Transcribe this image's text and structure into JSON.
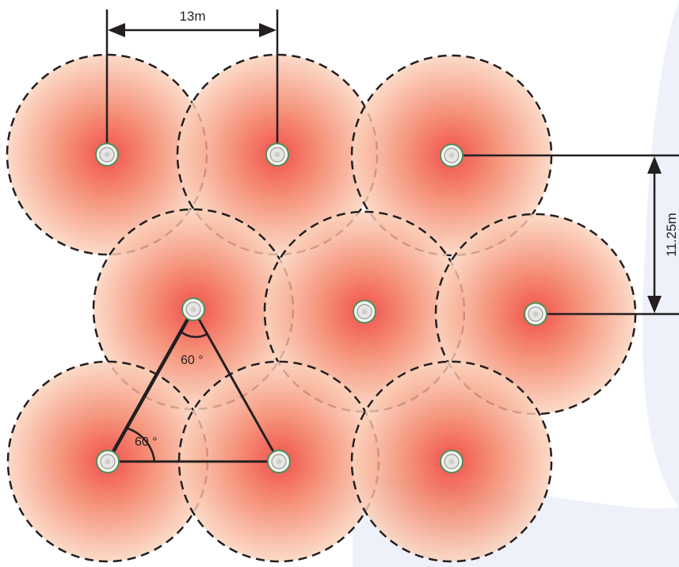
{
  "dimensions": {
    "horizontal_spacing": "13m",
    "vertical_spacing": "11.25m"
  },
  "angles": {
    "top_angle": "60 °",
    "bottom_angle": "60 °"
  },
  "colors": {
    "coverage_center": "#ee2a24",
    "coverage_mid": "#f37c5e",
    "coverage_edge": "#fbd3bd",
    "circle_outline": "#231f20",
    "line": "#231f20",
    "background_shape": "#eef1fa",
    "sensor_body": "#e6e6e6",
    "sensor_ring": "#4f8f5a"
  },
  "icons": {
    "sensor": "ceiling-sensor-icon",
    "arrowhead": "arrowhead-icon"
  }
}
